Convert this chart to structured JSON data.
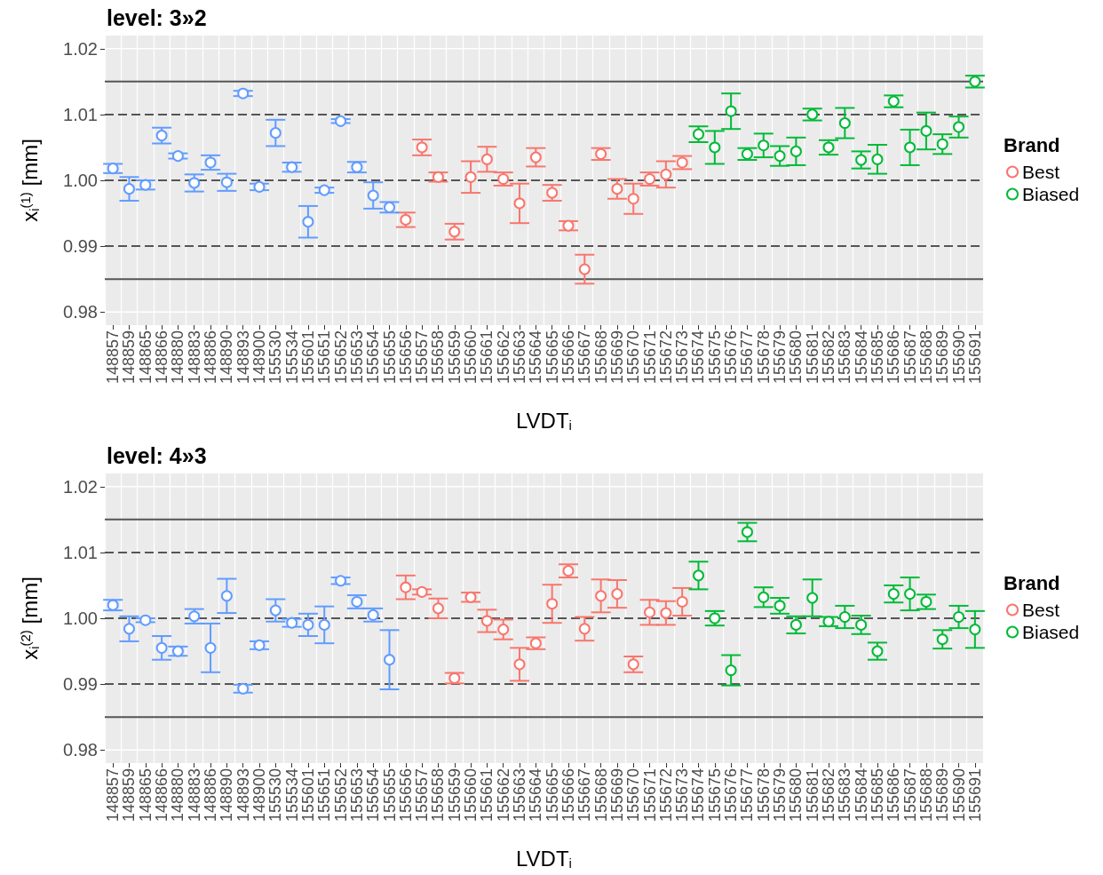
{
  "chart_data": [
    {
      "type": "scatter",
      "title": "level: 3»2",
      "xlabel": "LVDT$_{i}$",
      "ylabel": "x$_{i}$$^{(1)}$ [mm]",
      "legend_title": "Brand",
      "legend": "right",
      "grid": true,
      "marker": "circle",
      "categories": [
        "148857",
        "148859",
        "148865",
        "148866",
        "148880",
        "148883",
        "148886",
        "148890",
        "148893",
        "148900",
        "155530",
        "155534",
        "155601",
        "155651",
        "155652",
        "155653",
        "155654",
        "155655",
        "155656",
        "155657",
        "155658",
        "155659",
        "155660",
        "155661",
        "155662",
        "155663",
        "155664",
        "155665",
        "155666",
        "155667",
        "155668",
        "155669",
        "155670",
        "155671",
        "155672",
        "155673",
        "155674",
        "155675",
        "155676",
        "155677",
        "155678",
        "155679",
        "155680",
        "155681",
        "155682",
        "155683",
        "155684",
        "155685",
        "155686",
        "155687",
        "155688",
        "155689",
        "155690",
        "155691"
      ],
      "ylim": [
        0.978,
        1.022
      ],
      "yticks": [
        0.98,
        0.99,
        {
          "value": 1.0,
          "label": "1.00"
        },
        1.01,
        1.02
      ],
      "ref_lines": [
        {
          "axis": "y",
          "value": 1.015,
          "color": "#555555",
          "line_style": "solid"
        },
        {
          "axis": "y",
          "value": 1.01,
          "color": "#555555",
          "line_style": "dashed"
        },
        {
          "axis": "y",
          "value": 1.0,
          "color": "#555555",
          "line_style": "dashed"
        },
        {
          "axis": "y",
          "value": 0.99,
          "color": "#555555",
          "line_style": "dashed"
        },
        {
          "axis": "y",
          "value": 0.985,
          "color": "#555555",
          "line_style": "solid"
        }
      ],
      "series": [
        {
          "name": "Best",
          "color": "#f8766d",
          "x": [
            "155656",
            "155657",
            "155658",
            "155659",
            "155660",
            "155661",
            "155662",
            "155663",
            "155664",
            "155665",
            "155666",
            "155667",
            "155668",
            "155669",
            "155670",
            "155671",
            "155672",
            "155673"
          ],
          "values": [
            0.994,
            1.005,
            1.0005,
            0.9922,
            1.0005,
            1.0032,
            1.0002,
            0.9965,
            1.0035,
            0.9981,
            0.9931,
            0.9865,
            1.004,
            0.9987,
            0.9972,
            1.0002,
            1.0009,
            1.0027
          ],
          "errors": [
            0.0011,
            0.0012,
            0.0007,
            0.0012,
            0.0024,
            0.0019,
            0.001,
            0.003,
            0.0014,
            0.0012,
            0.0007,
            0.0022,
            0.0009,
            0.0015,
            0.0023,
            0.001,
            0.002,
            0.001
          ]
        },
        {
          "name": "Biased",
          "color": "#00ba38",
          "x": [
            "155674",
            "155675",
            "155676",
            "155677",
            "155678",
            "155679",
            "155680",
            "155681",
            "155682",
            "155683",
            "155684",
            "155685",
            "155686",
            "155687",
            "155688",
            "155689",
            "155690",
            "155691"
          ],
          "values": [
            1.007,
            1.005,
            1.0105,
            1.004,
            1.0053,
            1.0037,
            1.0044,
            1.01,
            1.005,
            1.0087,
            1.0031,
            1.0032,
            1.012,
            1.005,
            1.0075,
            1.0055,
            1.0081,
            1.015
          ],
          "errors": [
            0.0012,
            0.0025,
            0.0027,
            0.0009,
            0.0018,
            0.0015,
            0.0021,
            0.0009,
            0.0011,
            0.0023,
            0.0013,
            0.0022,
            0.0009,
            0.0027,
            0.0028,
            0.0015,
            0.0016,
            0.0009
          ]
        },
        {
          "color": "#619cff",
          "x": [
            "148857",
            "148859",
            "148865",
            "148866",
            "148880",
            "148883",
            "148886",
            "148890",
            "148893",
            "148900",
            "155530",
            "155534",
            "155601",
            "155651",
            "155652",
            "155653",
            "155654",
            "155655"
          ],
          "values": [
            1.0018,
            0.9987,
            0.9993,
            1.0068,
            1.0037,
            0.9996,
            1.0027,
            0.9997,
            1.0132,
            0.999,
            1.0072,
            1.002,
            0.9937,
            0.9985,
            1.009,
            1.002,
            0.9977,
            0.9959
          ],
          "errors": [
            0.0007,
            0.0018,
            0.0007,
            0.0012,
            0.0004,
            0.0013,
            0.0011,
            0.0013,
            0.0004,
            0.0005,
            0.002,
            0.0007,
            0.0024,
            0.0004,
            0.0003,
            0.0008,
            0.002,
            0.0008
          ]
        }
      ]
    },
    {
      "type": "scatter",
      "title": "level: 4»3",
      "xlabel": "LVDT$_{i}$",
      "ylabel": "x$_{i}$$^{(2)}$ [mm]",
      "legend_title": "Brand",
      "legend": "right",
      "grid": true,
      "marker": "circle",
      "categories": [
        "148857",
        "148859",
        "148865",
        "148866",
        "148880",
        "148883",
        "148886",
        "148890",
        "148893",
        "148900",
        "155530",
        "155534",
        "155601",
        "155651",
        "155652",
        "155653",
        "155654",
        "155655",
        "155656",
        "155657",
        "155658",
        "155659",
        "155660",
        "155661",
        "155662",
        "155663",
        "155664",
        "155665",
        "155666",
        "155667",
        "155668",
        "155669",
        "155670",
        "155671",
        "155672",
        "155673",
        "155674",
        "155675",
        "155676",
        "155677",
        "155678",
        "155679",
        "155680",
        "155681",
        "155682",
        "155683",
        "155684",
        "155685",
        "155686",
        "155687",
        "155688",
        "155689",
        "155690",
        "155691"
      ],
      "ylim": [
        0.978,
        1.022
      ],
      "yticks": [
        0.98,
        0.99,
        {
          "value": 1.0,
          "label": "1.00"
        },
        1.01,
        1.02
      ],
      "ref_lines": [
        {
          "axis": "y",
          "value": 1.015,
          "color": "#555555",
          "line_style": "solid"
        },
        {
          "axis": "y",
          "value": 1.01,
          "color": "#555555",
          "line_style": "dashed"
        },
        {
          "axis": "y",
          "value": 1.0,
          "color": "#555555",
          "line_style": "dashed"
        },
        {
          "axis": "y",
          "value": 0.99,
          "color": "#555555",
          "line_style": "dashed"
        },
        {
          "axis": "y",
          "value": 0.985,
          "color": "#555555",
          "line_style": "solid"
        }
      ],
      "series": [
        {
          "name": "Best",
          "color": "#f8766d",
          "x": [
            "155656",
            "155657",
            "155658",
            "155659",
            "155660",
            "155661",
            "155662",
            "155663",
            "155664",
            "155665",
            "155666",
            "155667",
            "155668",
            "155669",
            "155670",
            "155671",
            "155672",
            "155673"
          ],
          "values": [
            1.0047,
            1.004,
            1.0015,
            0.9909,
            1.0032,
            0.9996,
            0.9983,
            0.993,
            0.9962,
            1.0022,
            1.0072,
            0.9984,
            1.0034,
            1.0037,
            0.993,
            1.0009,
            1.0008,
            1.0025
          ],
          "errors": [
            0.0018,
            0.0004,
            0.0015,
            0.0008,
            0.0007,
            0.0017,
            0.0015,
            0.0025,
            0.0009,
            0.0029,
            0.001,
            0.0018,
            0.0025,
            0.0021,
            0.0012,
            0.0019,
            0.0018,
            0.0021
          ]
        },
        {
          "name": "Biased",
          "color": "#00ba38",
          "x": [
            "155674",
            "155675",
            "155676",
            "155677",
            "155678",
            "155679",
            "155680",
            "155681",
            "155682",
            "155683",
            "155684",
            "155685",
            "155686",
            "155687",
            "155688",
            "155689",
            "155690",
            "155691"
          ],
          "values": [
            1.0065,
            1.0,
            0.9921,
            1.0131,
            1.0032,
            1.0019,
            0.999,
            1.0031,
            0.9995,
            1.0002,
            0.999,
            0.995,
            1.0037,
            1.0037,
            1.0025,
            0.9968,
            1.0002,
            0.9983
          ],
          "errors": [
            0.0021,
            0.0011,
            0.0023,
            0.0014,
            0.0015,
            0.0012,
            0.0013,
            0.0028,
            0.0007,
            0.0017,
            0.0014,
            0.0013,
            0.0013,
            0.0025,
            0.0011,
            0.0014,
            0.0017,
            0.0028
          ]
        },
        {
          "color": "#619cff",
          "x": [
            "148857",
            "148859",
            "148865",
            "148866",
            "148880",
            "148883",
            "148886",
            "148890",
            "148893",
            "148900",
            "155530",
            "155534",
            "155601",
            "155651",
            "155652",
            "155653",
            "155654",
            "155655"
          ],
          "values": [
            1.002,
            0.9984,
            0.9997,
            0.9955,
            0.995,
            1.0003,
            0.9955,
            1.0034,
            0.9893,
            0.9959,
            1.0012,
            0.9993,
            0.999,
            0.999,
            1.0057,
            1.0025,
            1.0005,
            0.9937
          ],
          "errors": [
            0.0008,
            0.0019,
            0.0003,
            0.0018,
            0.0007,
            0.0011,
            0.0037,
            0.0026,
            0.0006,
            0.0006,
            0.0017,
            0.0006,
            0.0017,
            0.0028,
            0.0005,
            0.001,
            0.001,
            0.0045
          ]
        }
      ]
    }
  ]
}
